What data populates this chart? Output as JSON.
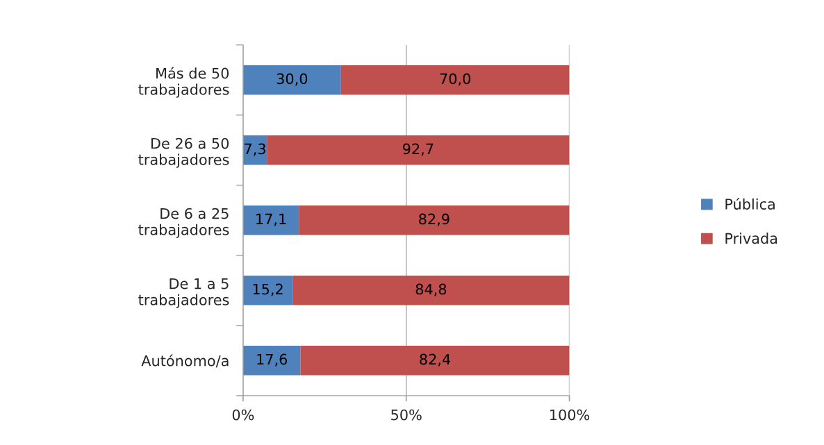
{
  "chart_data": {
    "type": "bar",
    "orientation": "horizontal",
    "stacked": true,
    "categories": [
      "Más de 50 trabajadores",
      "De 26 a 50 trabajadores",
      "De 6 a 25 trabajadores",
      "De 1 a 5 trabajadores",
      "Autónomo/a"
    ],
    "series": [
      {
        "name": "Pública",
        "color": "#4f81bd",
        "values": [
          30.0,
          7.3,
          17.1,
          15.2,
          17.6
        ],
        "value_labels": [
          "30,0",
          "7,3",
          "17,1",
          "15,2",
          "17,6"
        ]
      },
      {
        "name": "Privada",
        "color": "#c0504d",
        "values": [
          70.0,
          92.7,
          82.9,
          84.8,
          82.4
        ],
        "value_labels": [
          "70,0",
          "92,7",
          "82,9",
          "84,8",
          "82,4"
        ]
      }
    ],
    "xlim": [
      0,
      100
    ],
    "xticks": [
      {
        "value": 0,
        "label": "0%"
      },
      {
        "value": 50,
        "label": "50%"
      },
      {
        "value": 100,
        "label": "100%"
      }
    ],
    "grid": "x",
    "legend": "right"
  }
}
